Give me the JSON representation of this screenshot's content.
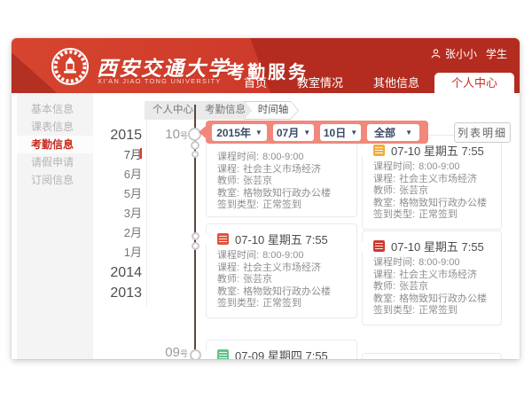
{
  "header": {
    "university_name_cn": "西安交通大学",
    "university_name_en": "XI'AN JIAO TONG UNIVERSITY",
    "service_title": "考勤服务",
    "user": {
      "name": "张小小",
      "role": "学生"
    },
    "nav_items": [
      {
        "id": "home",
        "label": "首页",
        "active": false
      },
      {
        "id": "classroom-status",
        "label": "教室情况",
        "active": false
      },
      {
        "id": "other-info",
        "label": "其他信息",
        "active": false
      },
      {
        "id": "personal-center",
        "label": "个人中心",
        "active": true
      }
    ]
  },
  "sidebar": {
    "items": [
      {
        "id": "basic-info",
        "label": "基本信息",
        "active": false
      },
      {
        "id": "schedule-info",
        "label": "课表信息",
        "active": false
      },
      {
        "id": "attendance-info",
        "label": "考勤信息",
        "active": true
      },
      {
        "id": "leave-request",
        "label": "请假申请",
        "active": false
      },
      {
        "id": "subscription-info",
        "label": "订阅信息",
        "active": false
      }
    ]
  },
  "breadcrumb": {
    "items": [
      {
        "label": "个人中心",
        "active": false
      },
      {
        "label": "考勤信息",
        "active": false
      },
      {
        "label": "时间轴",
        "active": true
      }
    ]
  },
  "timeline": {
    "nav": [
      {
        "label": "2015",
        "type": "year",
        "selected": false
      },
      {
        "label": "7月",
        "type": "month",
        "selected": true
      },
      {
        "label": "6月",
        "type": "month",
        "selected": false
      },
      {
        "label": "5月",
        "type": "month",
        "selected": false
      },
      {
        "label": "3月",
        "type": "month",
        "selected": false
      },
      {
        "label": "2月",
        "type": "month",
        "selected": false
      },
      {
        "label": "1月",
        "type": "month",
        "selected": false
      },
      {
        "label": "2014",
        "type": "year",
        "selected": false
      },
      {
        "label": "2013",
        "type": "year",
        "selected": false
      }
    ],
    "selected_tick_color": "#d9382a",
    "day_markers": [
      {
        "number": "10",
        "suffix": "号",
        "position": "top"
      },
      {
        "number": "09",
        "suffix": "号",
        "position": "bottom"
      }
    ]
  },
  "filter_bar": {
    "background": "#f0897c",
    "caret_icon": "▼",
    "dropdowns": [
      {
        "name": "year",
        "value": "2015年"
      },
      {
        "name": "month",
        "value": "07月"
      },
      {
        "name": "day",
        "value": "10日"
      },
      {
        "name": "type",
        "value": "全部"
      }
    ]
  },
  "list_detail_button": {
    "label": "列表明细"
  },
  "cards": [
    {
      "id": "left-1",
      "header": null,
      "icon_color": null,
      "arrow": false,
      "rows": [
        {
          "label": "课程时间:",
          "value": "8:00-9:00"
        },
        {
          "label": "课程:",
          "value": "社会主义市场经济"
        },
        {
          "label": "教师:",
          "value": "张芸京"
        },
        {
          "label": "教室:",
          "value": "格物致知行政办公楼"
        },
        {
          "label": "签到类型:",
          "value": "正常签到"
        }
      ]
    },
    {
      "id": "right-1",
      "header": "07-10 星期五 7:55",
      "icon_color": "#f0ad3e",
      "arrow": true,
      "rows": [
        {
          "label": "课程时间:",
          "value": "8:00-9:00"
        },
        {
          "label": "课程:",
          "value": "社会主义市场经济"
        },
        {
          "label": "教师:",
          "value": "张芸京"
        },
        {
          "label": "教室:",
          "value": "格物致知行政办公楼"
        },
        {
          "label": "签到类型:",
          "value": "正常签到"
        }
      ]
    },
    {
      "id": "left-2",
      "header": "07-10 星期五 7:55",
      "icon_color": "#e2523a",
      "arrow": true,
      "rows": [
        {
          "label": "课程时间:",
          "value": "8:00-9:00"
        },
        {
          "label": "课程:",
          "value": "社会主义市场经济"
        },
        {
          "label": "教师:",
          "value": "张芸京"
        },
        {
          "label": "教室:",
          "value": "格物致知行政办公楼"
        },
        {
          "label": "签到类型:",
          "value": "正常签到"
        }
      ]
    },
    {
      "id": "right-2",
      "header": "07-10 星期五 7:55",
      "icon_color": "#ce3a2e",
      "arrow": true,
      "rows": [
        {
          "label": "课程时间:",
          "value": "8:00-9:00"
        },
        {
          "label": "课程:",
          "value": "社会主义市场经济"
        },
        {
          "label": "教师:",
          "value": "张芸京"
        },
        {
          "label": "教室:",
          "value": "格物致知行政办公楼"
        },
        {
          "label": "签到类型:",
          "value": "正常签到"
        }
      ]
    },
    {
      "id": "left-3",
      "header": "07-09 星期四 7:55",
      "icon_color": "#66c28a",
      "arrow": true,
      "rows": []
    },
    {
      "id": "right-3",
      "header": null,
      "icon_color": null,
      "arrow": false,
      "rows": []
    }
  ]
}
